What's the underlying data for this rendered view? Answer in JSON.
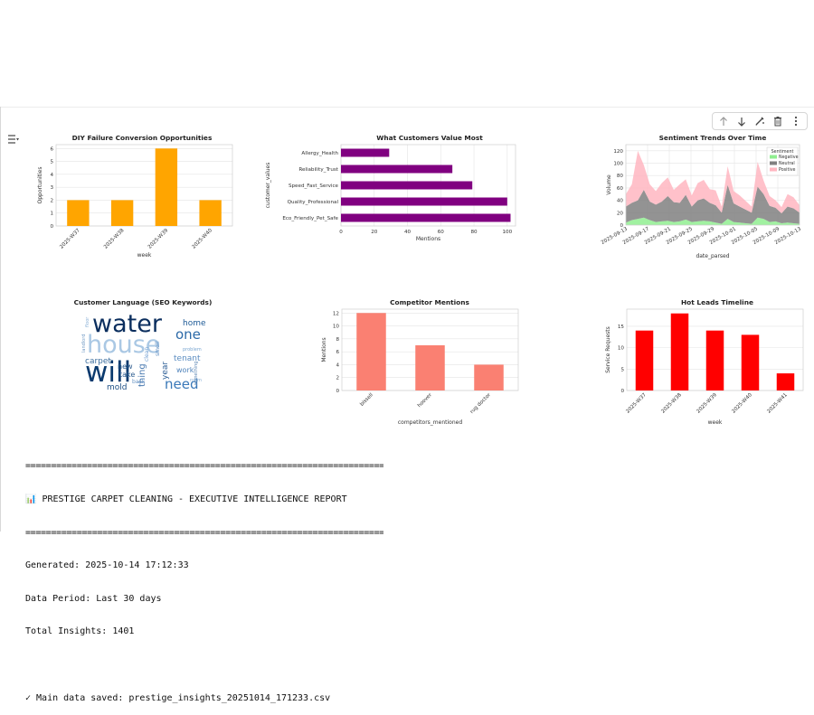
{
  "toolbar": {
    "icons": [
      "arrow-up-icon",
      "arrow-down-icon",
      "edit-icon",
      "trash-icon",
      "more-icon"
    ]
  },
  "charts": {
    "diy": {
      "title": "DIY Failure Conversion Opportunities",
      "xlabel": "week",
      "ylabel": "Opportunities",
      "ylim": [
        0,
        6.3
      ],
      "yticks": [
        0,
        1,
        2,
        3,
        4,
        5,
        6
      ],
      "categories": [
        "2025-W37",
        "2025-W38",
        "2025-W39",
        "2025-W40"
      ],
      "values": [
        2,
        2,
        6,
        2
      ],
      "color": "#ffa500"
    },
    "values": {
      "title": "What Customers Value Most",
      "xlabel": "Mentions",
      "ylabel": "customer_values",
      "xlim": [
        0,
        105
      ],
      "xticks": [
        0,
        20,
        40,
        60,
        80,
        100
      ],
      "categories": [
        "Allergy_Health",
        "Reliability_Trust",
        "Speed_Fast_Service",
        "Quality_Professional",
        "Eco_Friendly_Pet_Safe"
      ],
      "values": [
        29,
        67,
        79,
        100,
        102
      ],
      "color": "#800080"
    },
    "sentiment": {
      "title": "Sentiment Trends Over Time",
      "xlabel": "date_parsed",
      "ylabel": "Volume",
      "ylim": [
        0,
        130
      ],
      "yticks": [
        0,
        20,
        40,
        60,
        80,
        100,
        120
      ],
      "xticks": [
        "2025-09-13",
        "2025-09-17",
        "2025-09-21",
        "2025-09-25",
        "2025-09-29",
        "2025-10-01",
        "2025-10-05",
        "2025-10-09",
        "2025-10-13"
      ],
      "legend_title": "Sentiment",
      "legend_position": "top-right",
      "series": [
        {
          "name": "Negative",
          "color": "#90ee90",
          "values": [
            4,
            8,
            10,
            12,
            8,
            5,
            6,
            7,
            5,
            6,
            9,
            5,
            6,
            7,
            6,
            4,
            2,
            10,
            5,
            4,
            3,
            2,
            12,
            10,
            5,
            6,
            3,
            4,
            3,
            2
          ]
        },
        {
          "name": "Neutral",
          "color": "#808080",
          "values": [
            26,
            28,
            30,
            45,
            30,
            28,
            32,
            40,
            32,
            30,
            40,
            25,
            34,
            36,
            30,
            28,
            18,
            55,
            30,
            26,
            22,
            18,
            50,
            40,
            26,
            22,
            16,
            26,
            24,
            18
          ]
        },
        {
          "name": "Positive",
          "color": "#ffb6c1",
          "values": [
            20,
            30,
            80,
            40,
            28,
            22,
            30,
            30,
            20,
            30,
            25,
            18,
            28,
            30,
            22,
            24,
            10,
            30,
            20,
            18,
            14,
            10,
            40,
            22,
            16,
            12,
            10,
            20,
            18,
            12
          ]
        }
      ]
    },
    "wordcloud": {
      "title": "Customer Language (SEO Keywords)",
      "words": [
        "water",
        "house",
        "will",
        "home",
        "one",
        "need",
        "carpet",
        "take",
        "tenant",
        "thing",
        "mold",
        "year",
        "work",
        "new",
        "back",
        "problem",
        "floor",
        "smell",
        "clean",
        "landlord",
        "room",
        "something"
      ]
    },
    "competitors": {
      "title": "Competitor Mentions",
      "xlabel": "competitors_mentioned",
      "ylabel": "Mentions",
      "ylim": [
        0,
        12.6
      ],
      "yticks": [
        0,
        2,
        4,
        6,
        8,
        10,
        12
      ],
      "categories": [
        "bissell",
        "hoover",
        "rug doctor"
      ],
      "values": [
        12,
        7,
        4
      ],
      "color": "#fa8072"
    },
    "hotleads": {
      "title": "Hot Leads Timeline",
      "xlabel": "week",
      "ylabel": "Service Requests",
      "ylim": [
        0,
        19
      ],
      "yticks": [
        0,
        5,
        10,
        15
      ],
      "categories": [
        "2025-W37",
        "2025-W38",
        "2025-W39",
        "2025-W40",
        "2025-W41"
      ],
      "values": [
        14,
        18,
        14,
        13,
        4
      ],
      "color": "#ff0000"
    }
  },
  "report": {
    "rule": "============================================================================",
    "header": "📊 PRESTIGE CARPET CLEANING - EXECUTIVE INTELLIGENCE REPORT",
    "generated": "Generated: 2025-10-14 17:12:33",
    "period": "Data Period: Last 30 days",
    "insights": "Total Insights: 1401",
    "saved": "✓ Main data saved: prestige_insights_20251014_171233.csv"
  }
}
